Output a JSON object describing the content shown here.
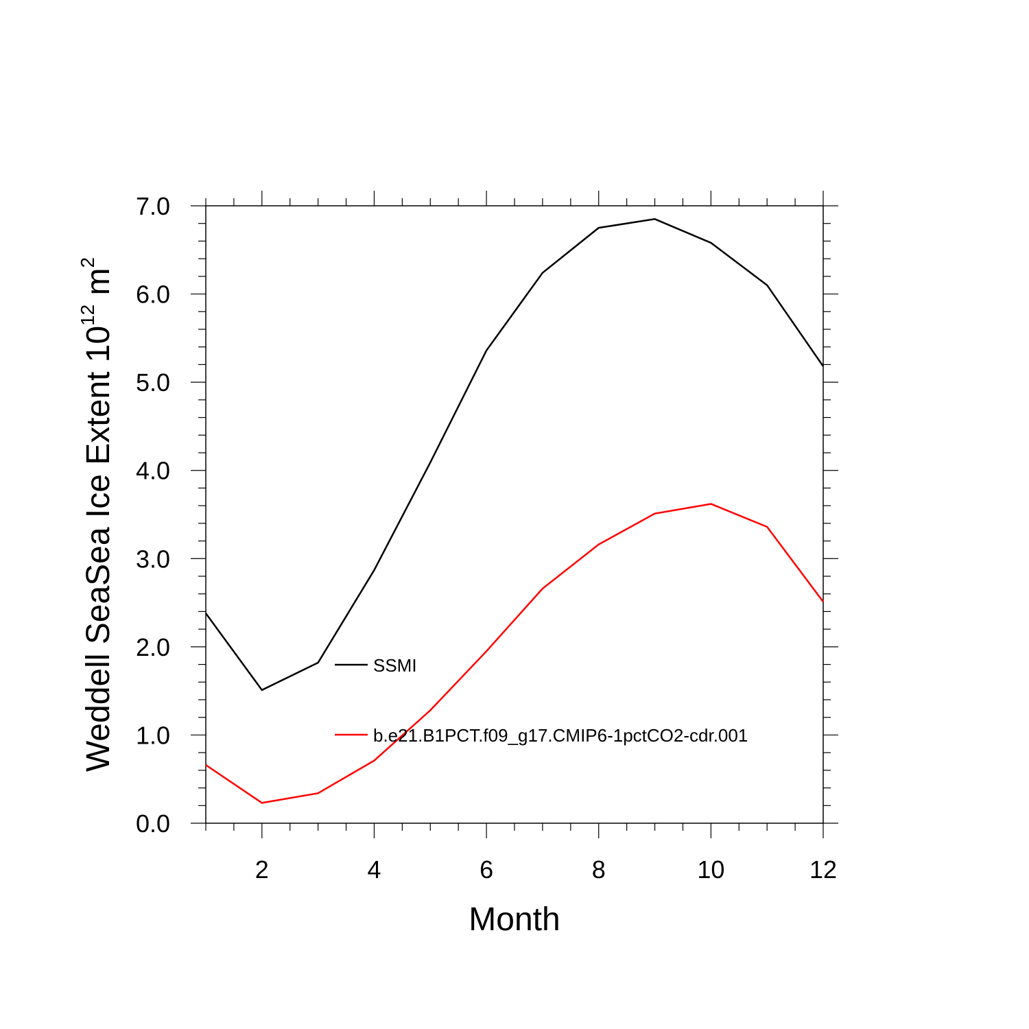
{
  "chart_data": {
    "type": "line",
    "xlabel": "Month",
    "ylabel": {
      "main": "Weddell SeaSea Ice Extent 10",
      "exp": "12",
      "unit": " m",
      "unit_exp": "2"
    },
    "xlim": [
      1,
      12
    ],
    "ylim": [
      0.0,
      7.0
    ],
    "xticks": [
      2,
      4,
      6,
      8,
      10,
      12
    ],
    "yticks": [
      0.0,
      1.0,
      2.0,
      3.0,
      4.0,
      5.0,
      6.0,
      7.0
    ],
    "ytick_labels": [
      "0.0",
      "1.0",
      "2.0",
      "3.0",
      "4.0",
      "5.0",
      "6.0",
      "7.0"
    ],
    "x": [
      1,
      2,
      3,
      4,
      5,
      6,
      7,
      8,
      9,
      10,
      11,
      12
    ],
    "series": [
      {
        "name": "SSMI",
        "color": "#000000",
        "values": [
          2.38,
          1.51,
          1.82,
          2.87,
          4.09,
          5.36,
          6.24,
          6.75,
          6.85,
          6.58,
          6.1,
          5.18
        ]
      },
      {
        "name": "b.e21.B1PCT.f09_g17.CMIP6-1pctCO2-cdr.001",
        "color": "#ff0000",
        "values": [
          0.66,
          0.23,
          0.34,
          0.71,
          1.28,
          1.95,
          2.66,
          3.16,
          3.51,
          3.62,
          3.36,
          2.51
        ]
      }
    ],
    "grid": false,
    "legend_position": "inside, lower-middle"
  }
}
